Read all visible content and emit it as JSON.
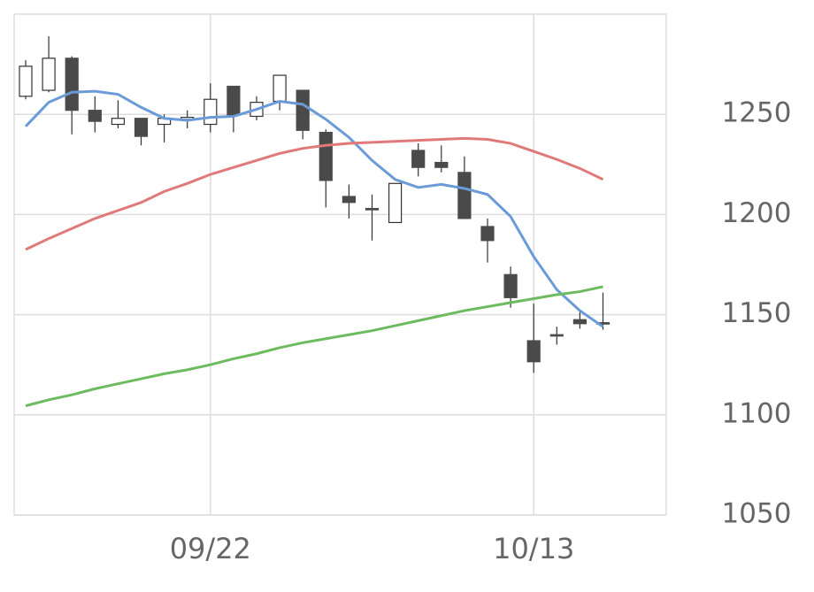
{
  "chart_data": {
    "type": "candlestick",
    "categories": [
      null,
      null,
      null,
      null,
      null,
      null,
      null,
      null,
      "09/22",
      null,
      null,
      null,
      null,
      null,
      null,
      null,
      null,
      null,
      null,
      null,
      null,
      null,
      "10/13",
      null,
      null,
      null
    ],
    "open": [
      1259,
      1262,
      1278,
      1252,
      1245,
      1248,
      1245,
      1247.5,
      1245,
      1264,
      1249,
      1256.5,
      1262,
      1241,
      1209,
      1203,
      1196,
      1232,
      1226,
      1221,
      1194,
      1170,
      1137,
      1140,
      1147.5,
      1146
    ],
    "high": [
      1277,
      1289,
      1279,
      1259,
      1257,
      1248,
      1250,
      1252,
      1265.5,
      1264,
      1259,
      1269.5,
      1262,
      1242.5,
      1215,
      1210,
      1215.5,
      1235.5,
      1234.5,
      1229,
      1198,
      1174,
      1155.5,
      1144,
      1152,
      1161
    ],
    "low": [
      1257.5,
      1261,
      1240,
      1241,
      1243,
      1234.5,
      1236,
      1243,
      1241,
      1241,
      1247,
      1252,
      1237.5,
      1203.5,
      1198,
      1187,
      1196,
      1219,
      1221,
      1198,
      1176,
      1153.5,
      1121,
      1135,
      1143,
      1142.5
    ],
    "close": [
      1274,
      1278,
      1252,
      1246.5,
      1248,
      1239,
      1248,
      1248.5,
      1257.5,
      1249.5,
      1256,
      1269.5,
      1242,
      1217,
      1206,
      1202.5,
      1215.5,
      1223.5,
      1223.5,
      1198,
      1187,
      1158.5,
      1126.5,
      1140,
      1145.5,
      1146
    ],
    "up_color": "#ffffff",
    "down_color": "#4a4a4a",
    "candle_edge": "#333333",
    "lines": [
      {
        "color": "#6a9bd8",
        "values": [
          1244,
          1256,
          1261,
          1261.5,
          1260,
          1253.5,
          1248,
          1247,
          1248.5,
          1249,
          1252.5,
          1256.5,
          1255,
          1247.5,
          1238.5,
          1227,
          1217.5,
          1213.5,
          1215,
          1213,
          1210,
          1199,
          1179,
          1162.5,
          1152,
          1144
        ]
      },
      {
        "color": "#e07a7a",
        "values": [
          1182.5,
          1188,
          1193,
          1198,
          1202,
          1206,
          1211.5,
          1215.5,
          1220,
          1223.5,
          1227,
          1230.5,
          1233,
          1234.5,
          1235.5,
          1236,
          1236.5,
          1237,
          1237.5,
          1238,
          1237.5,
          1235.5,
          1231.5,
          1227.5,
          1223,
          1217.5
        ]
      },
      {
        "color": "#6dbb5f",
        "values": [
          1104.5,
          1107.5,
          1110,
          1113,
          1115.5,
          1118,
          1120.5,
          1122.5,
          1125,
          1128,
          1130.5,
          1133.5,
          1136,
          1138,
          1140,
          1142,
          1144.5,
          1147,
          1149.5,
          1152,
          1154,
          1156,
          1158,
          1160,
          1161.5,
          1164
        ]
      }
    ],
    "ylim": [
      1050,
      1300
    ],
    "yticks": [
      1050,
      1100,
      1150,
      1200,
      1250
    ],
    "grid": true
  }
}
